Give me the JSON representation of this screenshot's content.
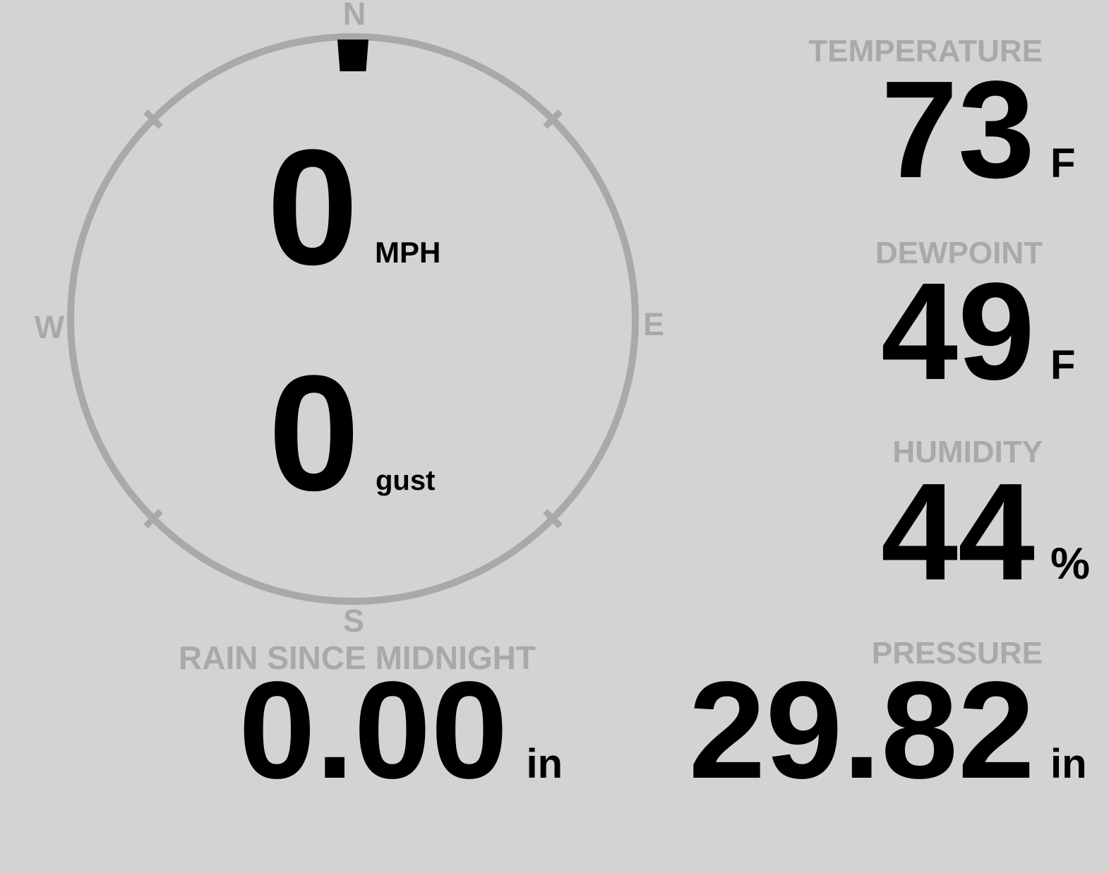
{
  "theme": {
    "background_color": "#d3d3d3",
    "muted_color": "#a9a9a9",
    "foreground_color": "#000000",
    "marker_color": "#000000"
  },
  "wind": {
    "compass": {
      "north": "N",
      "east": "E",
      "south": "S",
      "west": "W"
    },
    "direction": "N",
    "direction_degrees": 0,
    "speed": {
      "value": "0",
      "unit": "MPH"
    },
    "gust": {
      "value": "0",
      "unit": "gust"
    }
  },
  "stats": {
    "temperature": {
      "label": "TEMPERATURE",
      "value": "73",
      "unit": "F"
    },
    "dewpoint": {
      "label": "DEWPOINT",
      "value": "49",
      "unit": "F"
    },
    "humidity": {
      "label": "HUMIDITY",
      "value": "44",
      "unit": "%"
    },
    "pressure": {
      "label": "PRESSURE",
      "value": "29.82",
      "unit": "in"
    },
    "rain": {
      "label": "RAIN SINCE MIDNIGHT",
      "value": "0.00",
      "unit": "in"
    }
  }
}
